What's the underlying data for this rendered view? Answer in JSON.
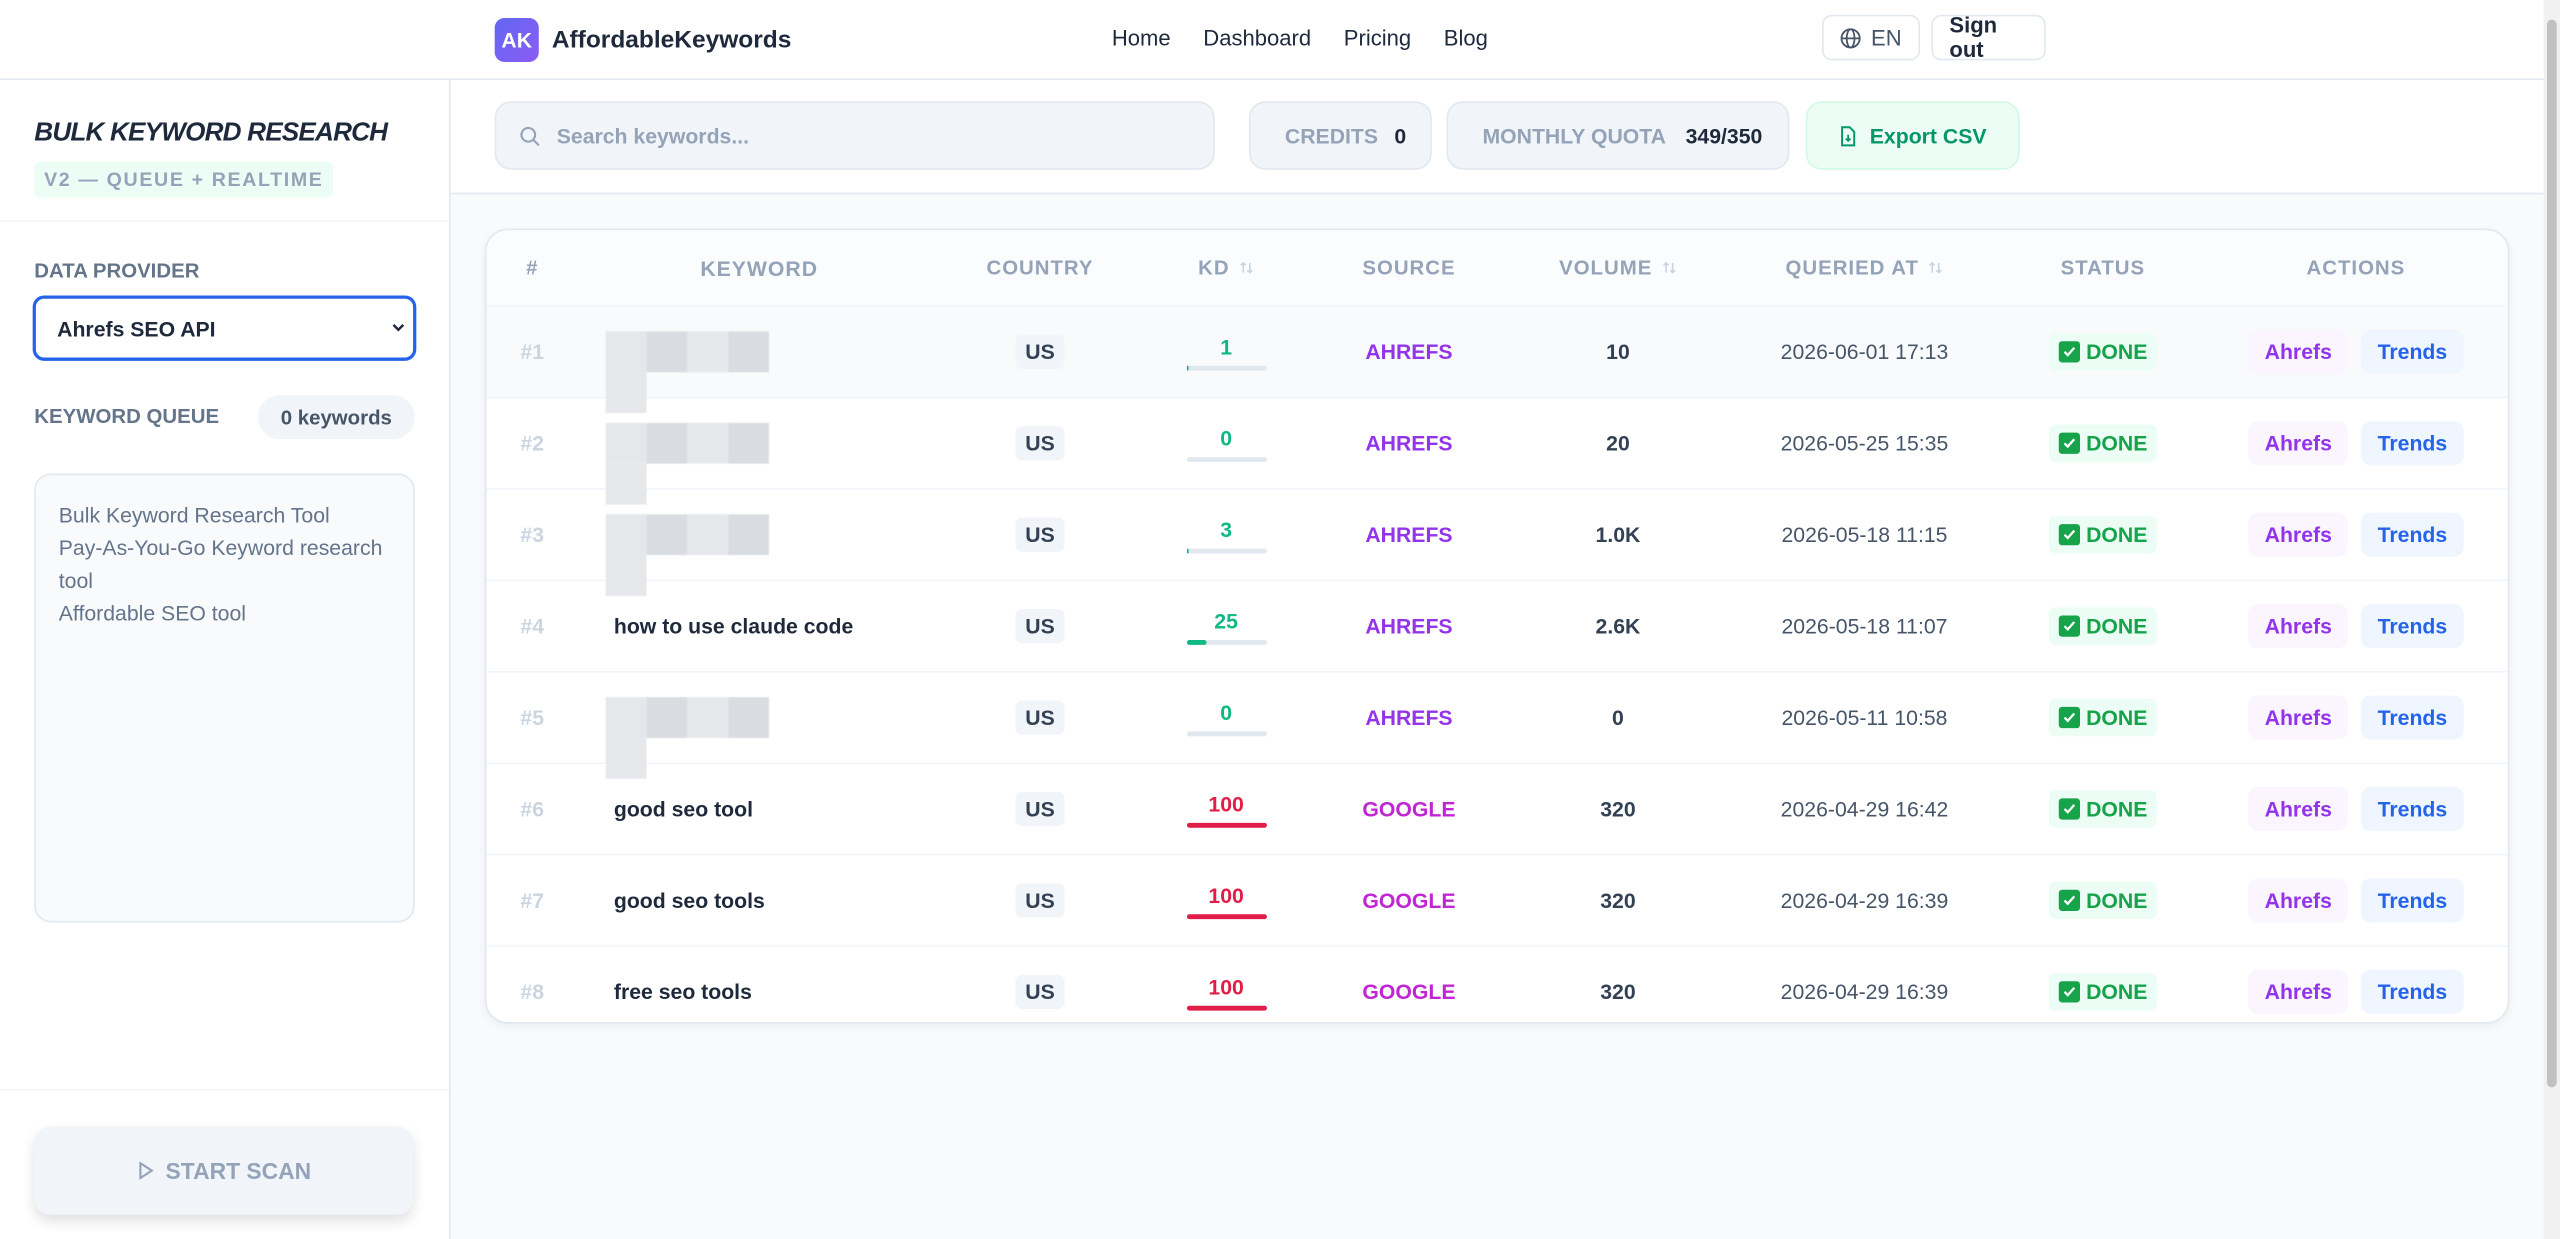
{
  "header": {
    "logo": "AK",
    "brand": "AffordableKeywords",
    "nav": [
      "Home",
      "Dashboard",
      "Pricing",
      "Blog"
    ],
    "language": "EN",
    "sign_out": "Sign out"
  },
  "sidebar": {
    "title": "BULK KEYWORD RESEARCH",
    "subtitle": "V2 — QUEUE + REALTIME",
    "provider_label": "DATA PROVIDER",
    "provider": "Ahrefs SEO API",
    "queue_label": "KEYWORD QUEUE",
    "queue_count": "0 keywords",
    "queue_lines": [
      "Bulk Keyword Research Tool",
      "Pay-As-You-Go Keyword research tool",
      "Affordable SEO tool"
    ],
    "start_scan": "START SCAN"
  },
  "toolbar": {
    "search_placeholder": "Search keywords...",
    "credits_label": "CREDITS",
    "credits": 0,
    "quota_label": "MONTHLY QUOTA",
    "quota": "349/350",
    "export": "Export CSV"
  },
  "table": {
    "headers": [
      {
        "label": "#"
      },
      {
        "label": "KEYWORD"
      },
      {
        "label": "COUNTRY"
      },
      {
        "label": "KD",
        "sortable": true
      },
      {
        "label": "SOURCE"
      },
      {
        "label": "VOLUME",
        "sortable": true
      },
      {
        "label": "QUERIED AT",
        "sortable": true
      },
      {
        "label": "STATUS"
      },
      {
        "label": "ACTIONS"
      }
    ],
    "kd_max": 100,
    "rows": [
      {
        "n": "#1",
        "keyword": null,
        "country": "US",
        "kd": 1,
        "source": "AHREFS",
        "volume": "10",
        "queried_at": "2026-06-01 17:13",
        "status": "DONE",
        "actions": [
          "Ahrefs",
          "Trends"
        ]
      },
      {
        "n": "#2",
        "keyword": null,
        "country": "US",
        "kd": 0,
        "source": "AHREFS",
        "volume": "20",
        "queried_at": "2026-05-25 15:35",
        "status": "DONE",
        "actions": [
          "Ahrefs",
          "Trends"
        ]
      },
      {
        "n": "#3",
        "keyword": null,
        "country": "US",
        "kd": 3,
        "source": "AHREFS",
        "volume": "1.0K",
        "queried_at": "2026-05-18 11:15",
        "status": "DONE",
        "actions": [
          "Ahrefs",
          "Trends"
        ]
      },
      {
        "n": "#4",
        "keyword": "how to use claude code",
        "country": "US",
        "kd": 25,
        "source": "AHREFS",
        "volume": "2.6K",
        "queried_at": "2026-05-18 11:07",
        "status": "DONE",
        "actions": [
          "Ahrefs",
          "Trends"
        ]
      },
      {
        "n": "#5",
        "keyword": null,
        "country": "US",
        "kd": 0,
        "source": "AHREFS",
        "volume": "0",
        "queried_at": "2026-05-11 10:58",
        "status": "DONE",
        "actions": [
          "Ahrefs",
          "Trends"
        ]
      },
      {
        "n": "#6",
        "keyword": "good seo tool",
        "country": "US",
        "kd": 100,
        "source": "GOOGLE",
        "volume": "320",
        "queried_at": "2026-04-29 16:42",
        "status": "DONE",
        "actions": [
          "Ahrefs",
          "Trends"
        ]
      },
      {
        "n": "#7",
        "keyword": "good seo tools",
        "country": "US",
        "kd": 100,
        "source": "GOOGLE",
        "volume": "320",
        "queried_at": "2026-04-29 16:39",
        "status": "DONE",
        "actions": [
          "Ahrefs",
          "Trends"
        ]
      },
      {
        "n": "#8",
        "keyword": "free seo tools",
        "country": "US",
        "kd": 100,
        "source": "GOOGLE",
        "volume": "320",
        "queried_at": "2026-04-29 16:39",
        "status": "DONE",
        "actions": [
          "Ahrefs",
          "Trends"
        ]
      }
    ]
  }
}
